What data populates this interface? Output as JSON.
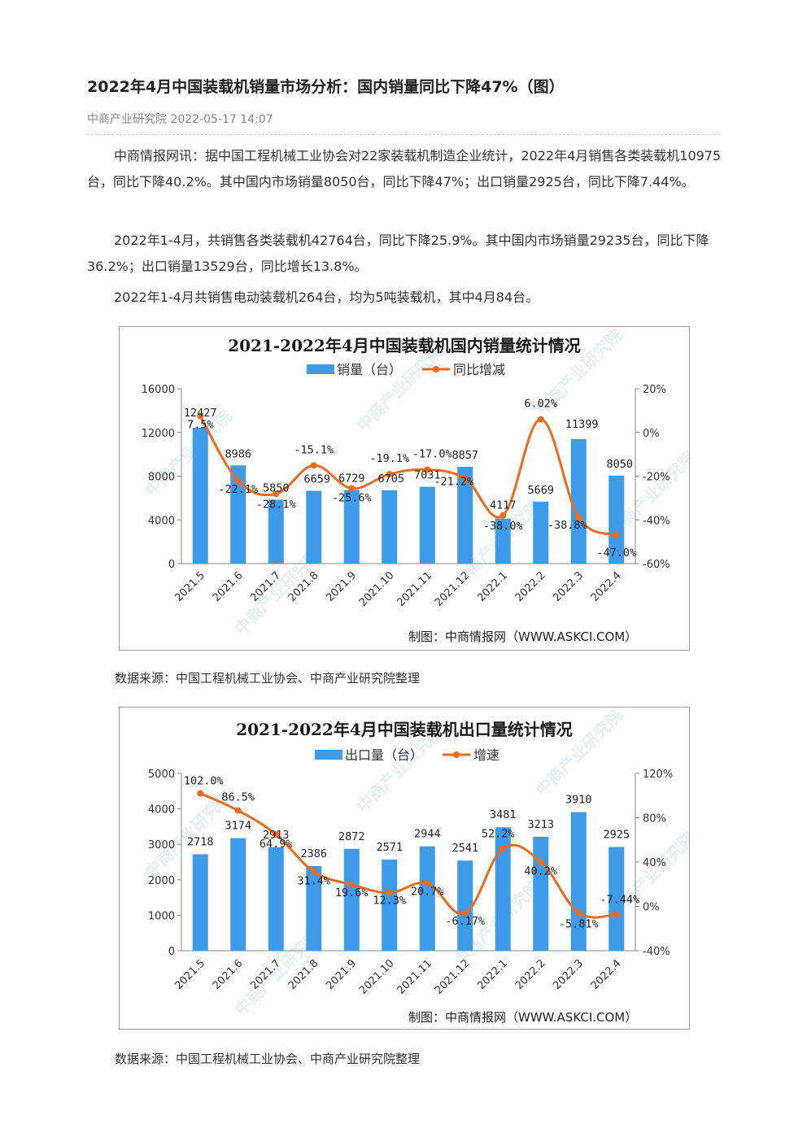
{
  "article": {
    "title": "2022年4月中国装载机销量市场分析：国内销量同比下降47%（图）",
    "meta": "中商产业研究院 2022-05-17 14:07",
    "paragraphs": [
      "中商情报网讯：据中国工程机械工业协会对22家装载机制造企业统计，2022年4月销售各类装载机10975台，同比下降40.2%。其中国内市场销量8050台，同比下降47%；出口销量2925台，同比下降7.44%。",
      "2022年1-4月，共销售各类装载机42764台，同比下降25.9%。其中国内市场销量29235台，同比下降36.2%；出口销量13529台，同比增长13.8%。",
      "2022年1-4月共销售电动装载机264台，均为5吨装载机，其中4月84台。"
    ],
    "source1": "数据来源：中国工程机械工业协会、中商产业研究院整理",
    "source2": "数据来源：中国工程机械工业协会、中商产业研究院整理"
  },
  "colors": {
    "bar": "#3d9be9",
    "line": "#ee6b1d",
    "grid": "#888888",
    "watermark": "#cfe2f3"
  },
  "watermark": "中商产业研究院",
  "chart_data": [
    {
      "type": "bar",
      "title": "2021-2022年4月中国装载机国内销量统计情况",
      "categories": [
        "2021.5",
        "2021.6",
        "2021.7",
        "2021.8",
        "2021.9",
        "2021.10",
        "2021.11",
        "2021.12",
        "2022.1",
        "2022.2",
        "2022.3",
        "2022.4"
      ],
      "series": [
        {
          "name": "销量（台）",
          "type": "bar",
          "axis": "left",
          "values": [
            12427,
            8986,
            5850,
            6659,
            6729,
            6705,
            7031,
            8857,
            4117,
            5669,
            11399,
            8050
          ]
        },
        {
          "name": "同比增减",
          "type": "line",
          "axis": "right",
          "values": [
            7.5,
            -22.1,
            -28.1,
            -15.1,
            -25.6,
            -19.1,
            -17.0,
            -21.2,
            -38.0,
            6.02,
            -38.8,
            -47.0
          ],
          "labels": [
            "7.5%",
            "-22.1%",
            "-28.1%",
            "-15.1%",
            "-25.6%",
            "-19.1%",
            "-17.0%",
            "-21.2%",
            "-38.0%",
            "6.02%",
            "-38.8%",
            "-47.0%"
          ]
        }
      ],
      "ylim_left": [
        0,
        16000
      ],
      "yticks_left": [
        "0",
        "4000",
        "8000",
        "12000",
        "16000"
      ],
      "ylim_right": [
        -60,
        20
      ],
      "yticks_right": [
        "-60%",
        "-40%",
        "-20%",
        "0%",
        "20%"
      ],
      "legend_position": "top-center",
      "credit": "制图：中商情报网（WWW.ASKCI.COM）"
    },
    {
      "type": "bar",
      "title": "2021-2022年4月中国装载机出口量统计情况",
      "categories": [
        "2021.5",
        "2021.6",
        "2021.7",
        "2021.8",
        "2021.9",
        "2021.10",
        "2021.11",
        "2021.12",
        "2022.1",
        "2022.2",
        "2022.3",
        "2022.4"
      ],
      "series": [
        {
          "name": "出口量（台）",
          "type": "bar",
          "axis": "left",
          "values": [
            2718,
            3174,
            2913,
            2386,
            2872,
            2571,
            2944,
            2541,
            3481,
            3213,
            3910,
            2925
          ]
        },
        {
          "name": "增速",
          "type": "line",
          "axis": "right",
          "values": [
            102.0,
            86.5,
            64.9,
            31.4,
            19.6,
            12.3,
            20.7,
            -6.17,
            52.2,
            40.2,
            -5.81,
            -7.44
          ],
          "labels": [
            "102.0%",
            "86.5%",
            "64.9%",
            "31.4%",
            "19.6%",
            "12.3%",
            "20.7%",
            "-6.17%",
            "52.2%",
            "40.2%",
            "-5.81%",
            "-7.44%"
          ]
        }
      ],
      "ylim_left": [
        0,
        5000
      ],
      "yticks_left": [
        "0",
        "1000",
        "2000",
        "3000",
        "4000",
        "5000"
      ],
      "ylim_right": [
        -40,
        120
      ],
      "yticks_right": [
        "-40%",
        "0%",
        "40%",
        "80%",
        "120%"
      ],
      "legend_position": "top-center",
      "credit": "制图：中商情报网（WWW.ASKCI.COM）"
    }
  ]
}
